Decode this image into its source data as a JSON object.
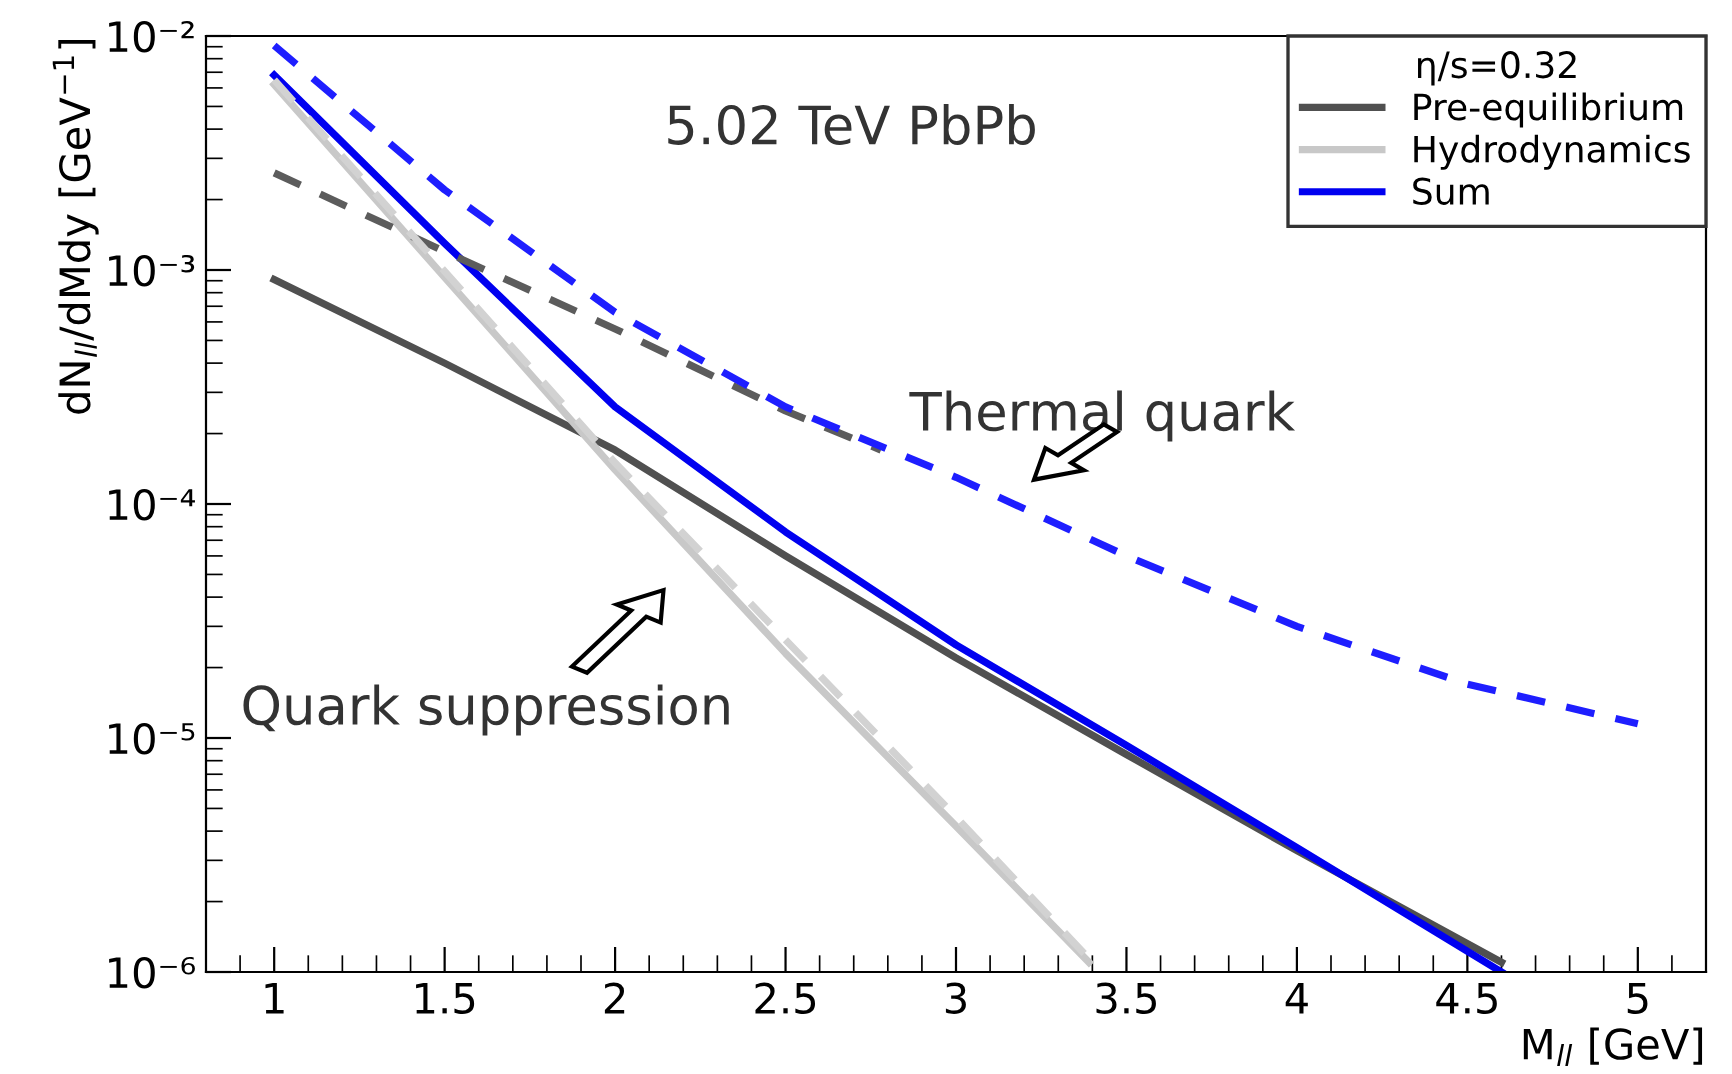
{
  "chart_data": {
    "type": "line",
    "xlabel": "M$_{ll}$ [GeV]",
    "ylabel": "dN$_{ll}$/dMdy [GeV$^{−1}$]",
    "legend_title": "η/s=0.32",
    "legend": "top right",
    "log": "y",
    "grid": false,
    "marker": "none",
    "xlim": [
      0.8,
      5.2
    ],
    "xticks": [
      1,
      1.5,
      2,
      2.5,
      3,
      3.5,
      4,
      4.5,
      5
    ],
    "ylim": [
      1e-06,
      0.01
    ],
    "yticks": [
      {
        "value": 1e-06,
        "label": "10⁻⁶"
      },
      {
        "value": 1e-05,
        "label": "10⁻⁵"
      },
      {
        "value": 0.0001,
        "label": "10⁻⁴"
      },
      {
        "value": 0.001,
        "label": "10⁻³"
      },
      {
        "value": 0.01,
        "label": "10⁻²"
      }
    ],
    "series": [
      {
        "name": "Pre-equilibrium",
        "color": "#505050",
        "line_style": "solid",
        "x": [
          1,
          1.5,
          2,
          2.5,
          3,
          3.5,
          4,
          4.6
        ],
        "values": [
          0.00091,
          0.0004,
          0.00017,
          6e-05,
          2.2e-05,
          8.5e-06,
          3.3e-06,
          1.1e-06
        ]
      },
      {
        "name": "Hydrodynamics",
        "color": "#c8c8c8",
        "line_style": "solid",
        "x": [
          1,
          1.5,
          2,
          2.5,
          3,
          3.39
        ],
        "values": [
          0.0062,
          0.00093,
          0.00014,
          2.3e-05,
          4.2e-06,
          1.1e-06
        ]
      },
      {
        "name": "Sum",
        "color": "#0000f0",
        "line_style": "solid",
        "x": [
          1,
          1.5,
          2,
          2.5,
          3,
          3.5,
          4,
          4.6
        ],
        "values": [
          0.0068,
          0.0013,
          0.00026,
          7.6e-05,
          2.5e-05,
          9.3e-06,
          3.4e-06,
          1e-06
        ]
      },
      {
        "color": "#5c5c5c",
        "line_style": "dashed",
        "x": [
          1,
          1.5,
          2,
          2.5,
          2.78
        ],
        "values": [
          0.0026,
          0.0012,
          0.00056,
          0.00025,
          0.00017
        ]
      },
      {
        "color": "#d2d2d2",
        "line_style": "dashed",
        "x": [
          1,
          2,
          3,
          3.4
        ],
        "values": [
          0.0065,
          0.00015,
          4.6e-06,
          1.1e-06
        ]
      },
      {
        "color": "#1e1eff",
        "line_style": "dashed",
        "x": [
          1,
          1.5,
          2,
          2.5,
          3,
          3.5,
          4,
          4.5,
          5
        ],
        "values": [
          0.0091,
          0.0022,
          0.00066,
          0.00026,
          0.00013,
          6e-05,
          3e-05,
          1.7e-05,
          1.15e-05
        ]
      }
    ],
    "annotations": [
      "5.02 TeV PbPb",
      "Thermal quark",
      "Quark suppression"
    ]
  }
}
